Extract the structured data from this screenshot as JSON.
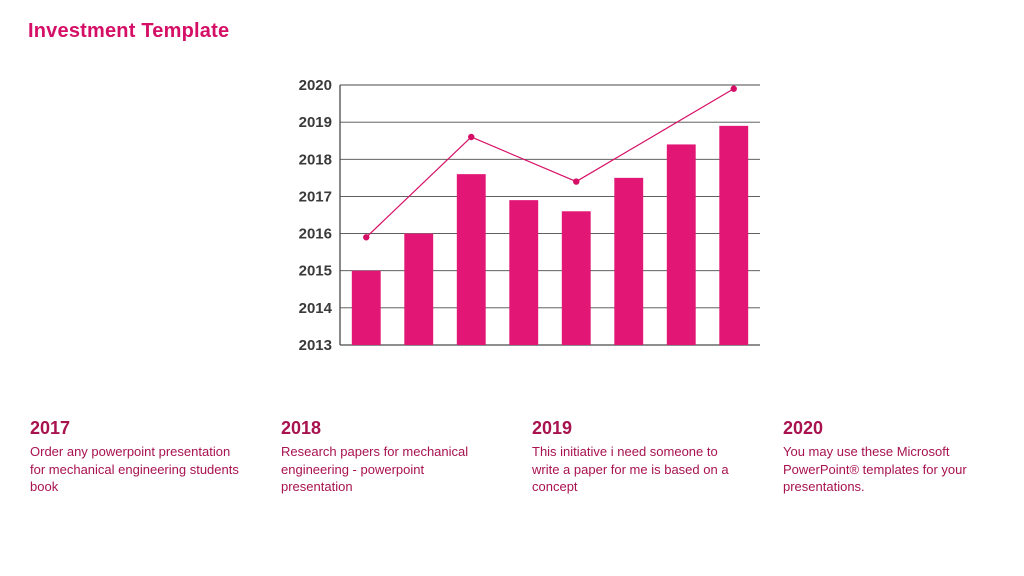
{
  "title": "Investment Template",
  "title_color": "#d60f66",
  "accent": "#d60f66",
  "text_color": "#b01058",
  "chart": {
    "type": "combo-bar-line",
    "y_ticks": [
      "2013",
      "2014",
      "2015",
      "2016",
      "2017",
      "2018",
      "2019",
      "2020"
    ],
    "y_domain": [
      2013,
      2020
    ],
    "bars": [
      2015.0,
      2016.0,
      2017.6,
      2016.9,
      2016.6,
      2017.5,
      2018.4,
      2018.9
    ],
    "bar_color": "#e21775",
    "bar_width_ratio": 0.55,
    "line_points": [
      2015.9,
      null,
      2018.6,
      null,
      2017.4,
      null,
      null,
      2019.9
    ],
    "line_color": "#d60f66",
    "line_width": 1.2,
    "marker_radius": 3.2,
    "grid_color": "#4a4a4a",
    "axis_color": "#4a4a4a",
    "axis_font_size": 15,
    "axis_font_weight": "700",
    "axis_text_color": "#3a3a3a",
    "plot_inner_width": 420,
    "plot_inner_height": 260,
    "plot_left_pad": 60,
    "plot_top_pad": 10
  },
  "callouts": [
    {
      "year": "2017",
      "text": "Order any powerpoint presentation for mechanical engineering students book"
    },
    {
      "year": "2018",
      "text": "Research papers for mechanical engineering - powerpoint presentation"
    },
    {
      "year": "2019",
      "text": "This initiative i need someone to write a paper for me is based on a concept"
    },
    {
      "year": "2020",
      "text": "You may use these Microsoft PowerPoint® templates for your presentations."
    }
  ],
  "callout_heading_color": "#a8124f",
  "callout_text_color": "#a8124f"
}
